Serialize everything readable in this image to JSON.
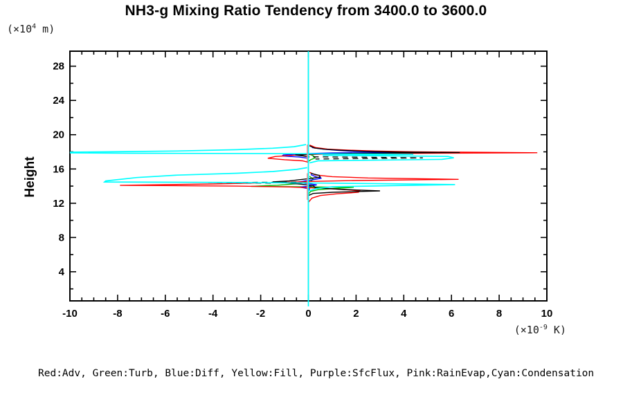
{
  "chart_data": {
    "type": "line",
    "title": "NH3-g Mixing Ratio Tendency from 3400.0 to 3600.0",
    "ylabel": "Height",
    "y_unit": {
      "pre": "(×10",
      "exp": "4",
      "post": " m)"
    },
    "x_unit": {
      "pre": "(×10",
      "exp": "-9",
      "post": " K)"
    },
    "xlim": [
      -10,
      10
    ],
    "ylim": [
      0.6,
      29.75
    ],
    "x_ticks": [
      -10,
      -8,
      -6,
      -4,
      -2,
      0,
      2,
      4,
      6,
      8,
      10
    ],
    "x_minor_step": 0.5,
    "y_ticks": [
      4,
      8,
      12,
      16,
      20,
      24,
      28
    ],
    "y_minor_step": 2,
    "grid": false,
    "frame_color": "#000000",
    "legend_text": "Red:Adv, Green:Turb, Blue:Diff, Yellow:Fill, Purple:SfcFlux, Pink:RainEvap,Cyan:Condensation",
    "legend_mapping": [
      {
        "color": "Red",
        "hex": "#ff0000",
        "meaning": "Adv"
      },
      {
        "color": "Green",
        "hex": "#00bb00",
        "meaning": "Turb"
      },
      {
        "color": "Blue",
        "hex": "#0000ff",
        "meaning": "Diff"
      },
      {
        "color": "Yellow",
        "hex": "#ffff00",
        "meaning": "Fill"
      },
      {
        "color": "Purple",
        "hex": "#9932cc",
        "meaning": "SfcFlux"
      },
      {
        "color": "Pink",
        "hex": "#ff8c8c",
        "meaning": "RainEvap"
      },
      {
        "color": "Cyan",
        "hex": "#00ffff",
        "meaning": "Condensation"
      }
    ],
    "zero_line": {
      "x": 0,
      "color": "#00ffff"
    },
    "series": [
      {
        "name": "fill-zero",
        "color": "#ffff00",
        "points": [
          [
            0,
            29.7
          ],
          [
            0,
            0.65
          ]
        ]
      },
      {
        "name": "sfcflux-zero",
        "color": "#9932cc",
        "points": [
          [
            0,
            29.7
          ],
          [
            0,
            0.65
          ]
        ]
      },
      {
        "name": "turb-upper",
        "color": "#00bb00",
        "points": [
          [
            0.05,
            17.75
          ],
          [
            0.22,
            17.5
          ],
          [
            0.28,
            17.28
          ],
          [
            0.1,
            17.08
          ],
          [
            0,
            16.88
          ]
        ]
      },
      {
        "name": "turb-lower",
        "color": "#00bb00",
        "points": [
          [
            0.05,
            15.15
          ],
          [
            0.2,
            14.8
          ],
          [
            0.1,
            14.55
          ],
          [
            -0.35,
            14.3
          ],
          [
            -1.3,
            14.1
          ],
          [
            -2.4,
            13.97
          ],
          [
            -0.7,
            13.92
          ],
          [
            1.9,
            13.86
          ],
          [
            1.1,
            13.72
          ],
          [
            0.4,
            13.58
          ],
          [
            0.1,
            13.38
          ],
          [
            0,
            13.05
          ]
        ]
      },
      {
        "name": "diff-upper",
        "color": "#0000ff",
        "points": [
          [
            0.15,
            18.5
          ],
          [
            0.6,
            18.32
          ],
          [
            1.2,
            18.18
          ],
          [
            1.9,
            18.05
          ],
          [
            4.1,
            17.94
          ],
          [
            1.0,
            17.87
          ],
          [
            -0.2,
            17.78
          ],
          [
            -1.05,
            17.64
          ],
          [
            -1.1,
            17.52
          ],
          [
            -0.4,
            17.4
          ],
          [
            0,
            17.25
          ]
        ]
      },
      {
        "name": "diff-lower",
        "color": "#0000ff",
        "points": [
          [
            0.1,
            15.35
          ],
          [
            0.3,
            15.1
          ],
          [
            0.55,
            14.92
          ],
          [
            0.2,
            14.75
          ],
          [
            -0.15,
            14.6
          ],
          [
            -0.45,
            14.45
          ],
          [
            -0.1,
            14.3
          ],
          [
            0.35,
            14.15
          ],
          [
            0.1,
            14.0
          ],
          [
            -0.35,
            13.88
          ],
          [
            0.05,
            13.68
          ],
          [
            0,
            13.4
          ]
        ]
      },
      {
        "name": "adv-upper",
        "color": "#ff0000",
        "points": [
          [
            0.05,
            18.8
          ],
          [
            0.3,
            18.5
          ],
          [
            0.8,
            18.32
          ],
          [
            1.6,
            18.2
          ],
          [
            2.8,
            18.1
          ],
          [
            4.5,
            18.0
          ],
          [
            9.6,
            17.9
          ],
          [
            3.0,
            17.8
          ],
          [
            0.6,
            17.73
          ],
          [
            -0.5,
            17.62
          ],
          [
            -1.4,
            17.45
          ],
          [
            -1.7,
            17.25
          ],
          [
            -1.0,
            17.08
          ],
          [
            -0.25,
            16.95
          ],
          [
            0,
            16.78
          ]
        ]
      },
      {
        "name": "adv-lower",
        "color": "#ff0000",
        "points": [
          [
            0.05,
            15.6
          ],
          [
            0.3,
            15.3
          ],
          [
            1.0,
            15.1
          ],
          [
            2.5,
            14.95
          ],
          [
            4.5,
            14.87
          ],
          [
            6.3,
            14.79
          ],
          [
            2.0,
            14.65
          ],
          [
            0.3,
            14.55
          ],
          [
            -1.5,
            14.4
          ],
          [
            -4.0,
            14.25
          ],
          [
            -7.9,
            14.09
          ],
          [
            -3.0,
            14.0
          ],
          [
            -0.8,
            13.9
          ],
          [
            0.5,
            13.75
          ],
          [
            1.5,
            13.6
          ],
          [
            2.15,
            13.44
          ],
          [
            2.1,
            13.28
          ],
          [
            1.2,
            13.1
          ],
          [
            0.5,
            12.9
          ],
          [
            0.15,
            12.6
          ],
          [
            0,
            12.1
          ]
        ]
      },
      {
        "name": "black-upper",
        "color": "#000000",
        "points": [
          [
            0.05,
            18.7
          ],
          [
            0.25,
            18.45
          ],
          [
            0.7,
            18.3
          ],
          [
            1.4,
            18.18
          ],
          [
            2.4,
            18.06
          ],
          [
            3.8,
            17.98
          ],
          [
            6.35,
            17.92
          ],
          [
            2.0,
            17.83
          ],
          [
            0.4,
            17.75
          ],
          [
            -0.55,
            17.63
          ],
          [
            -0.2,
            17.52
          ],
          [
            0.05,
            17.4
          ]
        ]
      },
      {
        "name": "black-upper-dashed",
        "color": "#000000",
        "dash": "8 6",
        "points": [
          [
            0.2,
            17.42
          ],
          [
            4.8,
            17.3
          ],
          [
            0.3,
            17.16
          ]
        ]
      },
      {
        "name": "black-lower",
        "color": "#000000",
        "points": [
          [
            0.1,
            15.5
          ],
          [
            0.45,
            15.25
          ],
          [
            0.5,
            15.05
          ],
          [
            0.1,
            14.9
          ],
          [
            -0.8,
            14.6
          ],
          [
            -1.5,
            14.5
          ],
          [
            -0.9,
            14.36
          ],
          [
            -0.3,
            14.22
          ],
          [
            0.2,
            14.05
          ],
          [
            0.3,
            13.8
          ],
          [
            1.5,
            13.6
          ],
          [
            3.0,
            13.44
          ],
          [
            1.0,
            13.28
          ],
          [
            0.2,
            13.14
          ],
          [
            0,
            12.9
          ]
        ]
      },
      {
        "name": "black-lower-dashed",
        "color": "#000000",
        "dash": "8 6",
        "points": [
          [
            -0.5,
            14.46
          ],
          [
            -4.2,
            14.42
          ],
          [
            -1.5,
            14.34
          ]
        ]
      },
      {
        "name": "condensation-upper",
        "color": "#00ffff",
        "points": [
          [
            -0.1,
            18.85
          ],
          [
            -0.6,
            18.6
          ],
          [
            -1.5,
            18.42
          ],
          [
            -3.0,
            18.25
          ],
          [
            -5.5,
            18.1
          ],
          [
            -8.5,
            18.0
          ],
          [
            -10.3,
            17.96
          ],
          [
            -10.3,
            17.88
          ],
          [
            -7.5,
            17.84
          ],
          [
            -0.4,
            17.78
          ],
          [
            4.4,
            17.7
          ],
          [
            0.6,
            17.6
          ],
          [
            5.85,
            17.47
          ],
          [
            6.1,
            17.3
          ],
          [
            5.6,
            17.12
          ],
          [
            0.4,
            16.95
          ],
          [
            0.05,
            16.7
          ]
        ]
      },
      {
        "name": "condensation-lower",
        "color": "#00ffff",
        "points": [
          [
            -0.05,
            16.15
          ],
          [
            -0.5,
            15.95
          ],
          [
            -1.5,
            15.7
          ],
          [
            -3.0,
            15.5
          ],
          [
            -5.5,
            15.28
          ],
          [
            -7.2,
            15.0
          ],
          [
            -8.5,
            14.6
          ],
          [
            -8.55,
            14.48
          ],
          [
            -3.0,
            14.42
          ],
          [
            0.5,
            14.35
          ],
          [
            3.5,
            14.27
          ],
          [
            6.15,
            14.17
          ],
          [
            3.5,
            14.05
          ],
          [
            1.0,
            13.92
          ],
          [
            0.3,
            13.7
          ],
          [
            0.05,
            13.45
          ]
        ]
      },
      {
        "name": "rainevap-upper",
        "color": "#ff8c8c",
        "points": [
          [
            -0.05,
            18.85
          ],
          [
            -0.05,
            16.9
          ]
        ]
      },
      {
        "name": "rainevap-lower",
        "color": "#ff8c8c",
        "points": [
          [
            -0.05,
            15.5
          ],
          [
            -0.05,
            12.4
          ]
        ]
      }
    ]
  }
}
